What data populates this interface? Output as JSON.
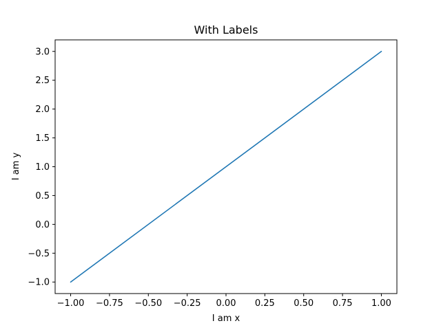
{
  "chart_data": {
    "type": "line",
    "title": "With Labels",
    "xlabel": "I am x",
    "ylabel": "I am y",
    "xlim": [
      -1.1,
      1.1
    ],
    "ylim": [
      -1.2,
      3.2
    ],
    "xticks": [
      -1.0,
      -0.75,
      -0.5,
      -0.25,
      0.0,
      0.25,
      0.5,
      0.75,
      1.0
    ],
    "xtick_labels": [
      "−1.00",
      "−0.75",
      "−0.50",
      "−0.25",
      "0.00",
      "0.25",
      "0.50",
      "0.75",
      "1.00"
    ],
    "yticks": [
      -1.0,
      -0.5,
      0.0,
      0.5,
      1.0,
      1.5,
      2.0,
      2.5,
      3.0
    ],
    "ytick_labels": [
      "−1.0",
      "−0.5",
      "0.0",
      "0.5",
      "1.0",
      "1.5",
      "2.0",
      "2.5",
      "3.0"
    ],
    "grid": false,
    "series": [
      {
        "color": "#1f77b4",
        "x": [
          -1.0,
          1.0
        ],
        "y": [
          -1.0,
          3.0
        ]
      }
    ]
  }
}
